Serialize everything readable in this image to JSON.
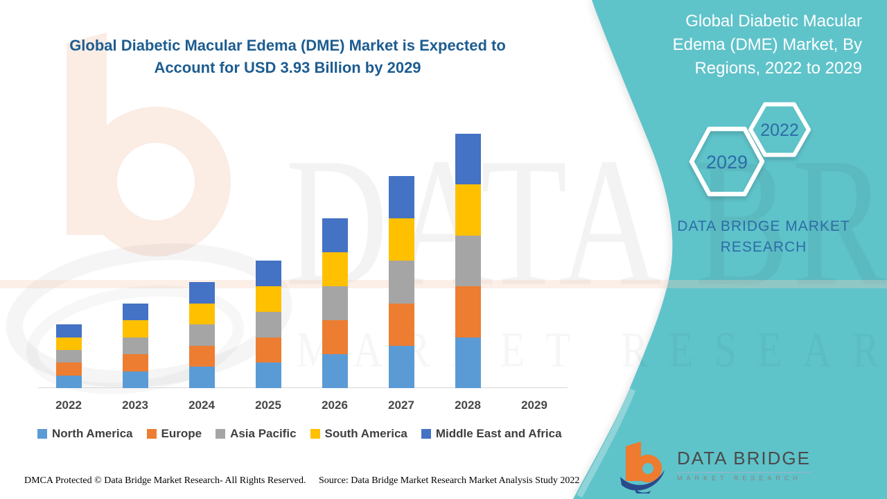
{
  "header": {
    "title": "Global Diabetic Macular Edema (DME) Market is Expected to Account for USD 3.93 Billion by 2029"
  },
  "side_panel": {
    "heading": "Global Diabetic Macular Edema (DME) Market, By Regions, 2022 to 2029",
    "hexagon_back_year": "2029",
    "hexagon_front_year": "2022",
    "brand": "DATA BRIDGE MARKET RESEARCH",
    "teal_color": "#5FC3CA",
    "accent_text_color": "#2d6ca6"
  },
  "watermark": {
    "line1": "DATA BRIDGE",
    "line2": "MARKET RESEARCH"
  },
  "chart_data": {
    "type": "bar",
    "stacked": true,
    "title": "Global Diabetic Macular Edema (DME) Market, By Regions, 2022 to 2029",
    "categories": [
      "2022",
      "2023",
      "2024",
      "2025",
      "2026",
      "2027",
      "2028",
      "2029"
    ],
    "series": [
      {
        "name": "North America",
        "color": "#5B9BD5",
        "values": [
          0.6,
          0.8,
          1.0,
          1.2,
          1.6,
          2.0,
          2.4,
          0
        ]
      },
      {
        "name": "Europe",
        "color": "#ED7D31",
        "values": [
          0.6,
          0.8,
          1.0,
          1.2,
          1.6,
          2.0,
          2.4,
          0
        ]
      },
      {
        "name": "Asia Pacific",
        "color": "#A5A5A5",
        "values": [
          0.6,
          0.8,
          1.0,
          1.2,
          1.6,
          2.0,
          2.4,
          0
        ]
      },
      {
        "name": "South America",
        "color": "#FFC000",
        "values": [
          0.6,
          0.8,
          1.0,
          1.2,
          1.6,
          2.0,
          2.4,
          0
        ]
      },
      {
        "name": "Middle East and Africa",
        "color": "#4472C4",
        "values": [
          0.6,
          0.8,
          1.0,
          1.2,
          1.6,
          2.0,
          2.4,
          0
        ]
      }
    ],
    "units": "relative height (no value axis shown in figure)",
    "ylim": [
      0,
      13
    ],
    "xlabel": "",
    "ylabel": "",
    "grid": false,
    "legend_position": "bottom",
    "note_no_bar_for": "2029"
  },
  "logo": {
    "brand": "DATA BRIDGE",
    "sub": "MARKET RESEARCH"
  },
  "footer": {
    "left": "DMCA Protected © Data Bridge Market Research- All Rights Reserved.",
    "right": "Source: Data Bridge Market Research Market Analysis Study 2022"
  }
}
